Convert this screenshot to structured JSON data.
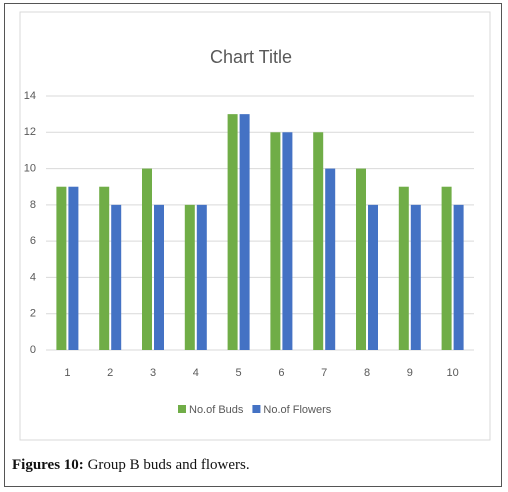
{
  "chart_data": {
    "type": "bar",
    "title": "Chart Title",
    "categories": [
      1,
      2,
      3,
      4,
      5,
      6,
      7,
      8,
      9,
      10
    ],
    "series": [
      {
        "name": "No.of Buds",
        "color": "#70ad47",
        "values": [
          9,
          9,
          10,
          8,
          13,
          12,
          12,
          10,
          9,
          9
        ]
      },
      {
        "name": "No.of Flowers",
        "color": "#4472c4",
        "values": [
          9,
          8,
          8,
          8,
          13,
          12,
          10,
          8,
          8,
          8
        ]
      }
    ],
    "ylim": [
      0,
      14
    ],
    "yticks": [
      0,
      2,
      4,
      6,
      8,
      10,
      12,
      14
    ],
    "grid": true,
    "legend": "bottom"
  },
  "caption": {
    "label": "Figures 10:",
    "text": "Group B buds and flowers."
  }
}
